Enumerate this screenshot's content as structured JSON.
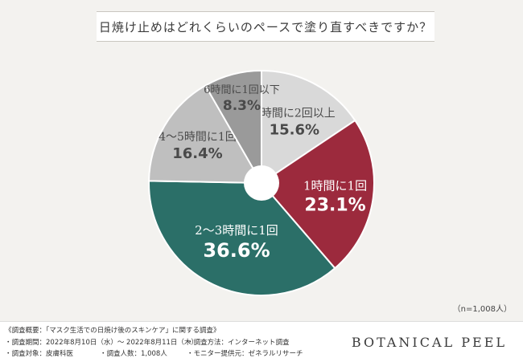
{
  "title": "日焼け止めはどれくらいのペースで塗り直すべきですか？",
  "sample_note": "（n=1,008人）",
  "brand": "BOTANICAL PEEL",
  "footer": {
    "survey_title": "《調査概要：「マスク生活での日焼け後のスキンケア」に関する調査》",
    "period": "・調査期間：2022年8月10日（水）～ 2022年8月11日（木）",
    "method": "・調査方法：インターネット調査",
    "target": "・調査対象：皮膚科医",
    "count": "・調査人数：1,008人",
    "provider": "・モニター提供元：ゼネラルリサーチ"
  },
  "colors": {
    "burgundy": "#9c2a3d",
    "teal": "#2b6f68",
    "light_gray": "#d9d9d9",
    "mid_gray": "#bfbfbf",
    "dark_gray": "#9a9a9a"
  },
  "chart_data": {
    "type": "pie",
    "title": "日焼け止めはどれくらいのペースで塗り直すべきですか？",
    "slices": [
      {
        "label": "1時間に2回以上",
        "value": 15.6,
        "value_label": "15.6%",
        "color": "#d9d9d9"
      },
      {
        "label": "1時間に1回",
        "value": 23.1,
        "value_label": "23.1%",
        "color": "#9c2a3d"
      },
      {
        "label": "2～3時間に1回",
        "value": 36.6,
        "value_label": "36.6%",
        "color": "#2b6f68"
      },
      {
        "label": "4～5時間に1回",
        "value": 16.4,
        "value_label": "16.4%",
        "color": "#bfbfbf"
      },
      {
        "label": "6時間に1回以下",
        "value": 8.3,
        "value_label": "8.3%",
        "color": "#9a9a9a"
      }
    ]
  }
}
